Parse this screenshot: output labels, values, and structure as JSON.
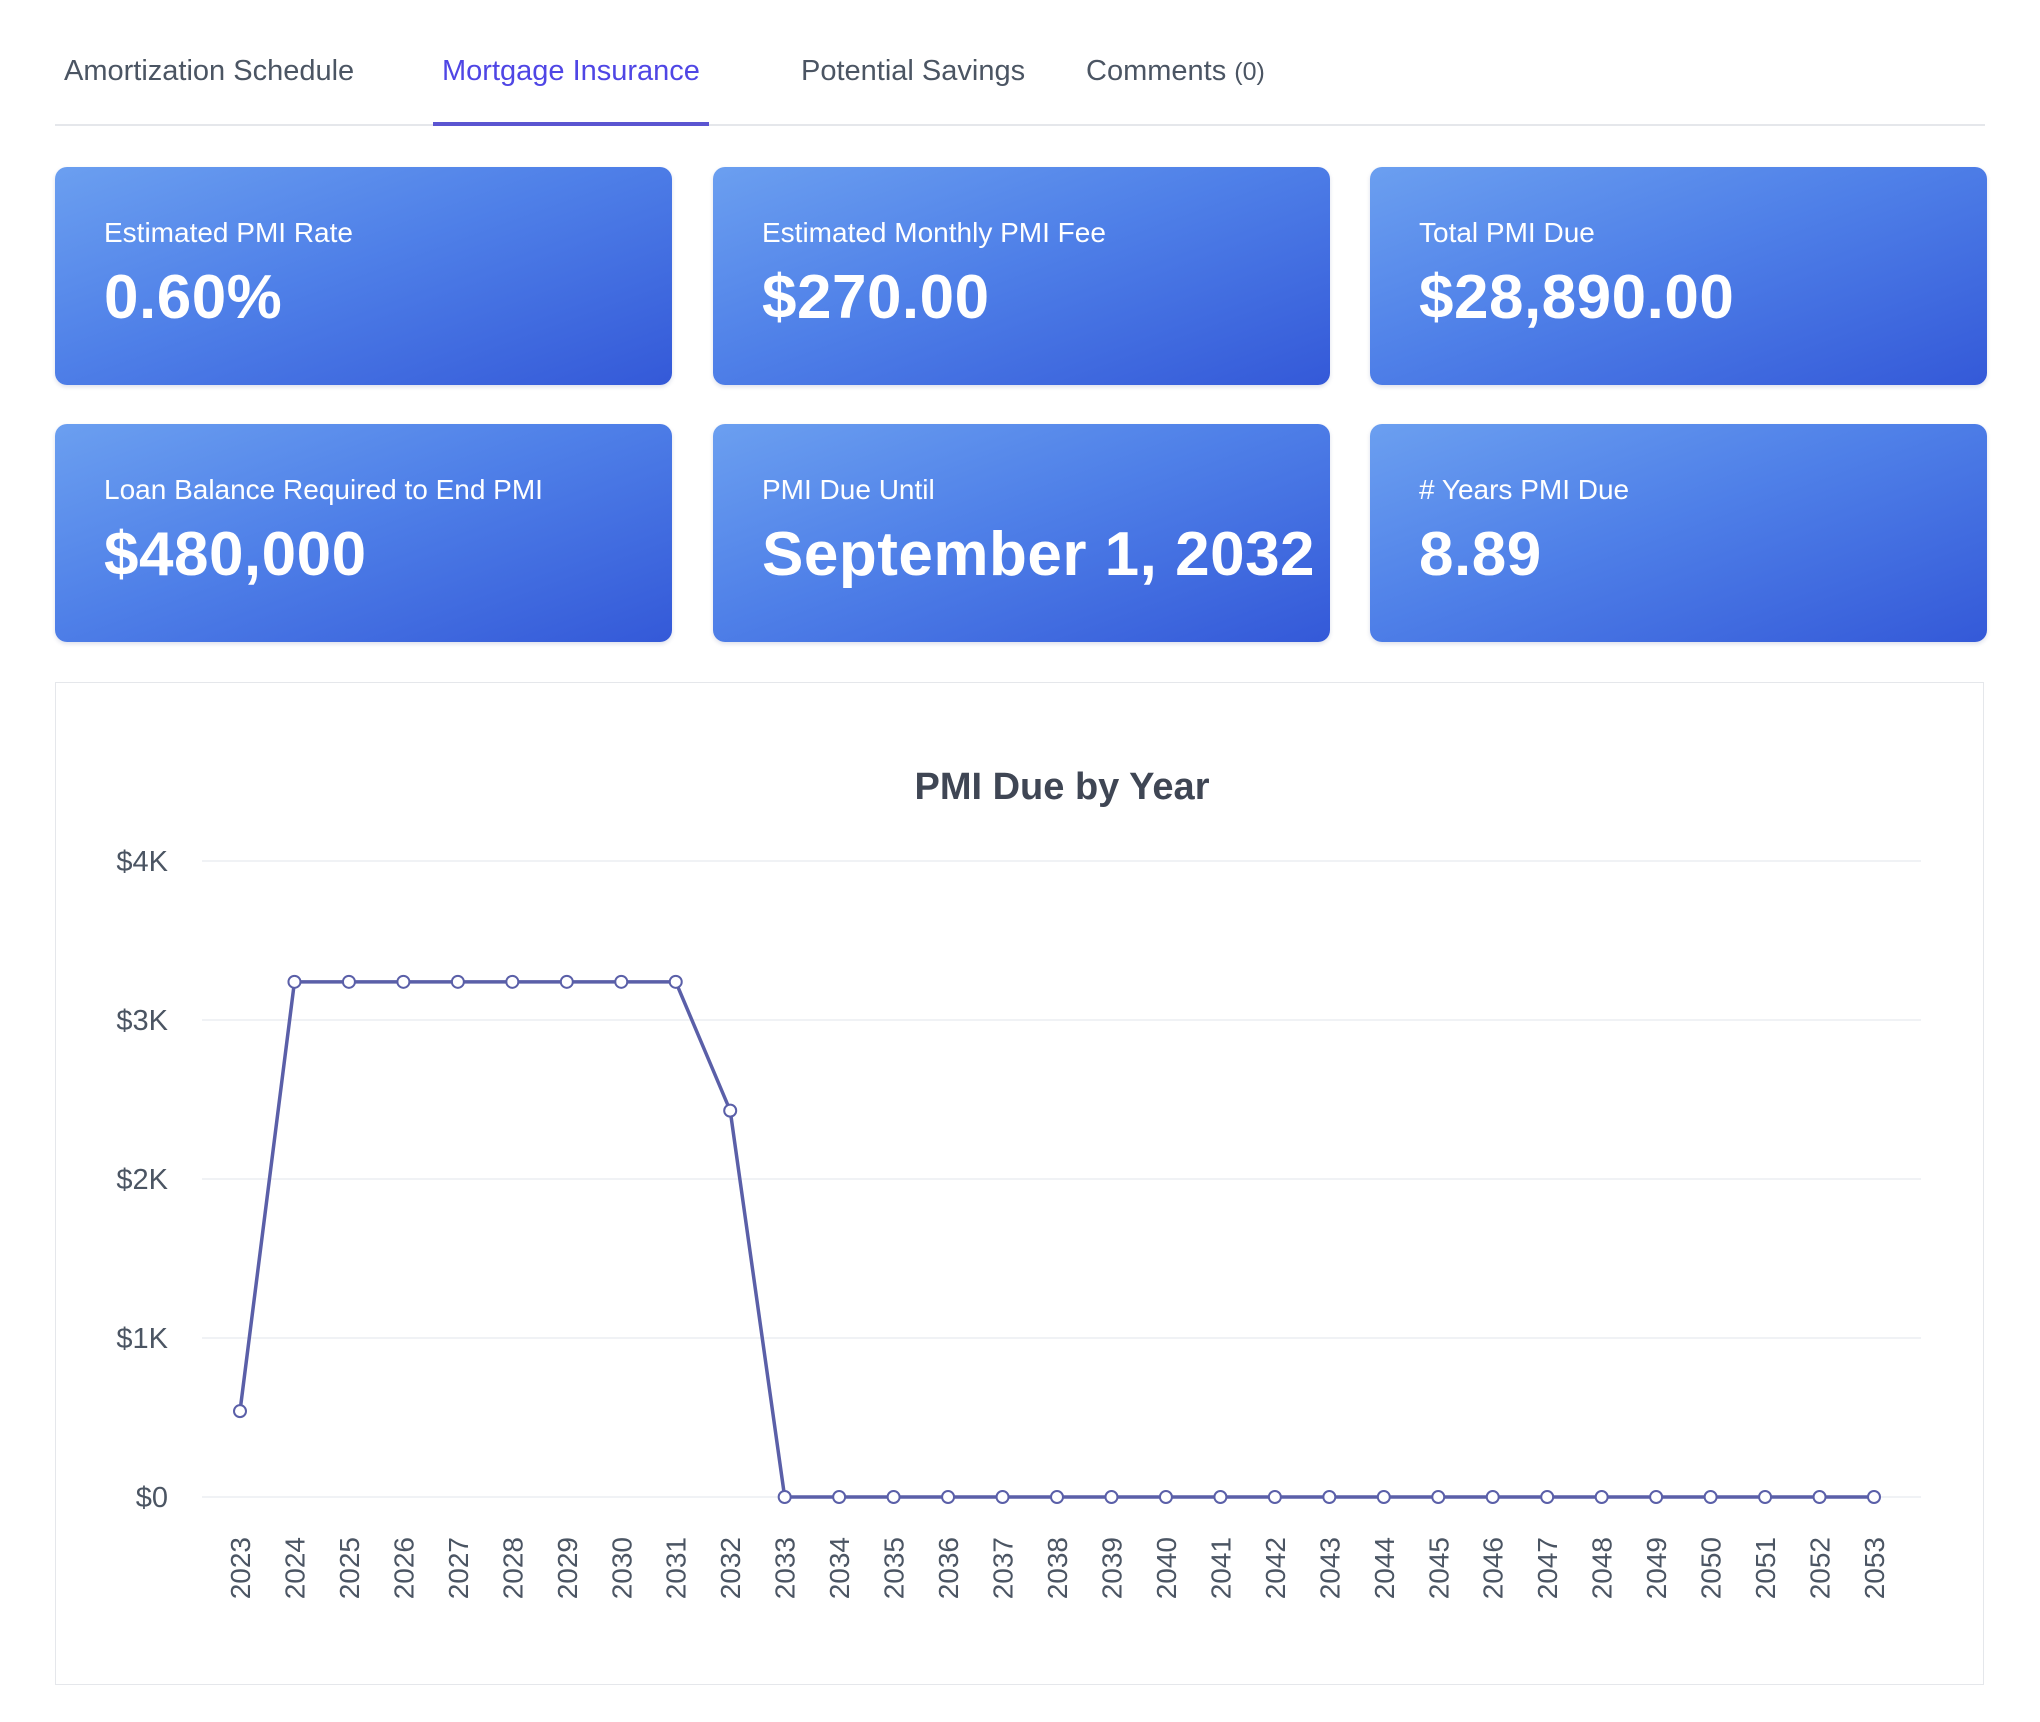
{
  "tabs": [
    {
      "label": "Amortization Schedule",
      "active": false
    },
    {
      "label": "Mortgage Insurance",
      "active": true
    },
    {
      "label": "Potential Savings",
      "active": false
    },
    {
      "label": "Comments",
      "count": "(0)",
      "active": false
    }
  ],
  "cards": [
    {
      "label": "Estimated PMI Rate",
      "value": "0.60%"
    },
    {
      "label": "Estimated Monthly PMI Fee",
      "value": "$270.00"
    },
    {
      "label": "Total PMI Due",
      "value": "$28,890.00"
    },
    {
      "label": "Loan Balance Required to End PMI",
      "value": "$480,000"
    },
    {
      "label": "PMI Due Until",
      "value": "September 1, 2032"
    },
    {
      "label": "# Years PMI Due",
      "value": "8.89"
    }
  ],
  "colors": {
    "accent": "#4f46e5",
    "card_gradient_start": "#6b9ff0",
    "card_gradient_end": "#3459d8",
    "series_line": "#5a5fa8"
  },
  "chart_data": {
    "type": "line",
    "title": "PMI Due by Year",
    "xlabel": "",
    "ylabel": "",
    "ylim": [
      0,
      4000
    ],
    "yticks": [
      "$0",
      "$1K",
      "$2K",
      "$3K",
      "$4K"
    ],
    "grid": true,
    "categories": [
      "2023",
      "2024",
      "2025",
      "2026",
      "2027",
      "2028",
      "2029",
      "2030",
      "2031",
      "2032",
      "2033",
      "2034",
      "2035",
      "2036",
      "2037",
      "2038",
      "2039",
      "2040",
      "2041",
      "2042",
      "2043",
      "2044",
      "2045",
      "2046",
      "2047",
      "2048",
      "2049",
      "2050",
      "2051",
      "2052",
      "2053"
    ],
    "series": [
      {
        "values": [
          540,
          3240,
          3240,
          3240,
          3240,
          3240,
          3240,
          3240,
          3240,
          2430,
          0,
          0,
          0,
          0,
          0,
          0,
          0,
          0,
          0,
          0,
          0,
          0,
          0,
          0,
          0,
          0,
          0,
          0,
          0,
          0,
          0
        ]
      }
    ]
  }
}
